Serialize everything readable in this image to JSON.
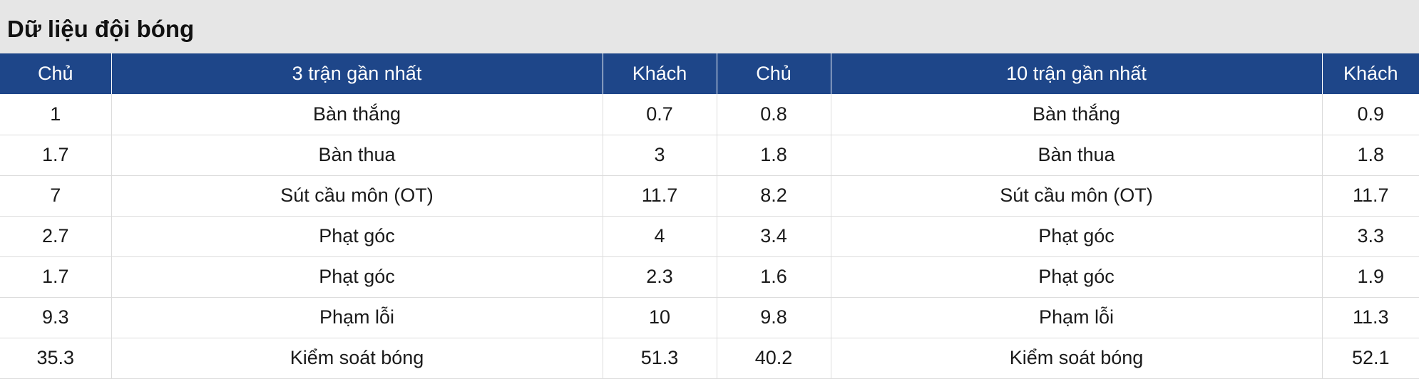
{
  "header": {
    "title": "Dữ liệu đội bóng"
  },
  "table": {
    "columns": [
      "Chủ",
      "3 trận gần nhất",
      "Khách",
      "Chủ",
      "10 trận gần nhất",
      "Khách"
    ],
    "rows": [
      [
        "1",
        "Bàn thắng",
        "0.7",
        "0.8",
        "Bàn thắng",
        "0.9"
      ],
      [
        "1.7",
        "Bàn thua",
        "3",
        "1.8",
        "Bàn thua",
        "1.8"
      ],
      [
        "7",
        "Sút cầu môn (OT)",
        "11.7",
        "8.2",
        "Sút cầu môn (OT)",
        "11.7"
      ],
      [
        "2.7",
        "Phạt góc",
        "4",
        "3.4",
        "Phạt góc",
        "3.3"
      ],
      [
        "1.7",
        "Phạt góc",
        "2.3",
        "1.6",
        "Phạt góc",
        "1.9"
      ],
      [
        "9.3",
        "Phạm lỗi",
        "10",
        "9.8",
        "Phạm lỗi",
        "11.3"
      ],
      [
        "35.3",
        "Kiểm soát bóng",
        "51.3",
        "40.2",
        "Kiểm soát bóng",
        "52.1"
      ]
    ]
  }
}
